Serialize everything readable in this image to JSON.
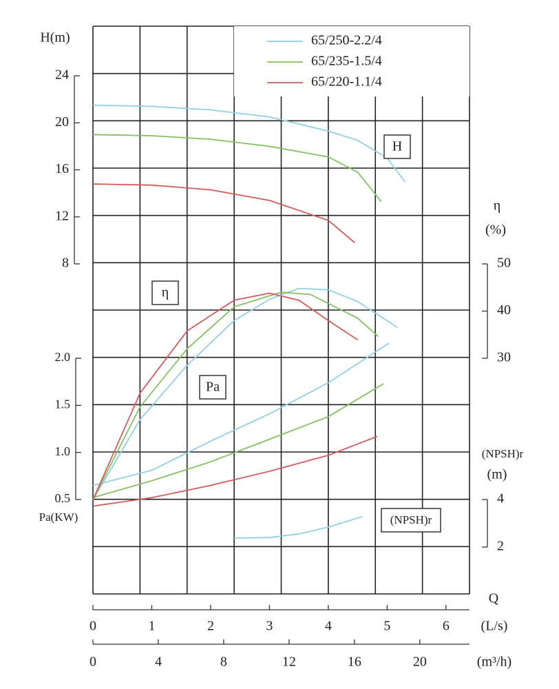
{
  "chart_data": {
    "type": "line",
    "xlabel": "Q",
    "xunit": "(L/s)",
    "x2unit": "(m³/h)",
    "xlim": [
      0,
      6.4
    ],
    "xticks": [
      0,
      1,
      2,
      3,
      4,
      5,
      6
    ],
    "x2lim": [
      0,
      23.04
    ],
    "x2ticks": [
      0,
      4,
      8,
      12,
      16,
      20
    ],
    "axes": {
      "H": {
        "label": "H(m)",
        "box": "H",
        "ylim": [
          8,
          24
        ],
        "yticks": [
          24,
          20,
          16,
          12,
          8
        ]
      },
      "eta": {
        "label": "η",
        "unit": "(%)",
        "box": "η",
        "ylim": [
          30,
          50
        ],
        "yticks": [
          50,
          40,
          30
        ]
      },
      "Pa": {
        "label": "Pa(KW)",
        "box": "Pa",
        "ylim": [
          0.5,
          2.0
        ],
        "yticks": [
          {
            "value": 2.0,
            "label": "2.0"
          },
          1.5,
          {
            "value": 1.0,
            "label": "1.0"
          },
          0.5
        ]
      },
      "npsh": {
        "label": "(NPSH)r",
        "unit": "(m)",
        "box": "(NPSH)r",
        "ylim": [
          2,
          4
        ],
        "yticks": [
          4,
          2
        ]
      }
    },
    "series": [
      {
        "name": "65/250-2.2/4",
        "color": "#8fd0e2",
        "H": {
          "x": [
            0,
            1,
            2,
            3,
            4,
            4.5,
            5,
            5.3
          ],
          "values": [
            21.5,
            21.4,
            21.1,
            20.5,
            19.3,
            18.5,
            17.0,
            15.0
          ]
        },
        "eta": {
          "x": [
            0,
            0.8,
            1.6,
            2.4,
            3.0,
            3.5,
            4.0,
            4.5,
            5.18
          ],
          "values": [
            0,
            17,
            28.5,
            38,
            42.5,
            44.8,
            44.5,
            42,
            36.5
          ]
        },
        "Pa": {
          "x": [
            0,
            1,
            2,
            3,
            4,
            5.03
          ],
          "values": [
            0.65,
            0.81,
            1.12,
            1.41,
            1.74,
            2.16
          ]
        },
        "npsh": {
          "x": [
            2.4,
            3.0,
            3.5,
            4.0,
            4.58
          ],
          "values": [
            2.38,
            2.4,
            2.55,
            2.84,
            3.28
          ]
        }
      },
      {
        "name": "65/235-1.5/4",
        "color": "#82c25e",
        "H": {
          "x": [
            0,
            1,
            2,
            3,
            4,
            4.5,
            4.9
          ],
          "values": [
            19.0,
            18.9,
            18.6,
            18.0,
            17.1,
            15.8,
            13.3
          ]
        },
        "eta": {
          "x": [
            0,
            0.8,
            1.6,
            2.4,
            3.2,
            3.7,
            4.0,
            4.5,
            4.85
          ],
          "values": [
            0,
            19.7,
            32,
            40.9,
            44,
            43.5,
            41.6,
            38.5,
            34.6
          ]
        },
        "Pa": {
          "x": [
            0,
            1,
            2,
            3,
            4,
            4.94
          ],
          "values": [
            0.52,
            0.7,
            0.9,
            1.14,
            1.38,
            1.73
          ]
        }
      },
      {
        "name": "65/220-1.1/4",
        "color": "#d65a5a",
        "H": {
          "x": [
            0,
            1,
            2,
            3,
            4,
            4.45
          ],
          "values": [
            14.8,
            14.7,
            14.3,
            13.4,
            11.7,
            9.8
          ]
        },
        "eta": {
          "x": [
            0,
            0.8,
            1.6,
            2.4,
            3.0,
            3.5,
            4.0,
            4.5
          ],
          "values": [
            0,
            22.6,
            35.8,
            42.3,
            43.8,
            42.3,
            38,
            33.9
          ]
        },
        "Pa": {
          "x": [
            0,
            1,
            2,
            3,
            4,
            4.83
          ],
          "values": [
            0.43,
            0.52,
            0.65,
            0.8,
            0.97,
            1.17
          ]
        }
      }
    ]
  }
}
